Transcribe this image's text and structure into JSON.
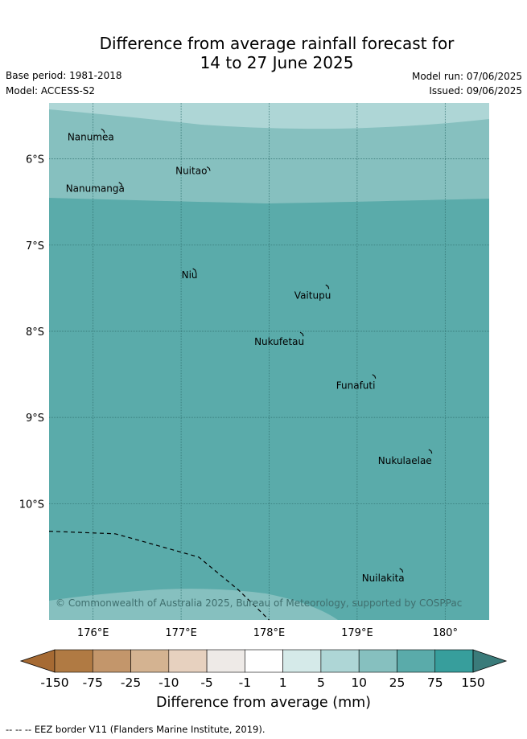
{
  "title_line1": "Difference from average rainfall forecast for",
  "title_line2": "14 to 27 June 2025",
  "base_period": "Base period: 1981-2018",
  "model": "Model: ACCESS-S2",
  "model_run": "Model run: 07/06/2025",
  "issued": "Issued: 09/06/2025",
  "map": {
    "lon_range": [
      175.5,
      180.5
    ],
    "lat_range": [
      -5.35,
      -11.35
    ],
    "x_ticks": [
      176,
      177,
      178,
      179,
      180
    ],
    "x_tick_labels": [
      "176°E",
      "177°E",
      "178°E",
      "179°E",
      "180°"
    ],
    "y_ticks": [
      -6,
      -7,
      -8,
      -9,
      -10
    ],
    "y_tick_labels": [
      "6°S",
      "7°S",
      "8°S",
      "9°S",
      "10°S"
    ],
    "islands": [
      {
        "name": "Nanumea",
        "lon": 176.12,
        "lat": -5.67
      },
      {
        "name": "Nuitao",
        "lon": 177.32,
        "lat": -6.11
      },
      {
        "name": "Nanumanga",
        "lon": 176.32,
        "lat": -6.29
      },
      {
        "name": "Niu",
        "lon": 177.16,
        "lat": -7.29
      },
      {
        "name": "Vaitupu",
        "lon": 178.67,
        "lat": -7.48
      },
      {
        "name": "Nukufetau",
        "lon": 178.38,
        "lat": -8.03
      },
      {
        "name": "Funafuti",
        "lon": 179.2,
        "lat": -8.52
      },
      {
        "name": "Nukulaelae",
        "lon": 179.84,
        "lat": -9.39
      },
      {
        "name": "Nuilakita",
        "lon": 179.51,
        "lat": -10.77
      }
    ],
    "eez_border": [
      [
        175.5,
        -10.32
      ],
      [
        175.75,
        -10.33
      ],
      [
        176.25,
        -10.35
      ],
      [
        176.5,
        -10.42
      ],
      [
        177.2,
        -10.62
      ],
      [
        177.65,
        -11.0
      ],
      [
        178.0,
        -11.35
      ]
    ],
    "copyright": "© Commonwealth of Australia 2025, Bureau of Meteorology, supported by COSPPac"
  },
  "legend": {
    "colors": [
      "#a66a33",
      "#b07a43",
      "#c3966b",
      "#d4b391",
      "#e7d1bf",
      "#eeeae7",
      "#ffffff",
      "#d5eae9",
      "#aed6d6",
      "#86c0bf",
      "#5aabaa",
      "#379e9c",
      "#3a7b7a"
    ],
    "labels": [
      "-150",
      "-75",
      "-25",
      "-10",
      "-5",
      "-1",
      "1",
      "5",
      "10",
      "25",
      "75",
      "150"
    ],
    "title": "Difference from average (mm)"
  },
  "footnote": "-- -- -- EEZ border V11 (Flanders Marine Institute, 2019)."
}
